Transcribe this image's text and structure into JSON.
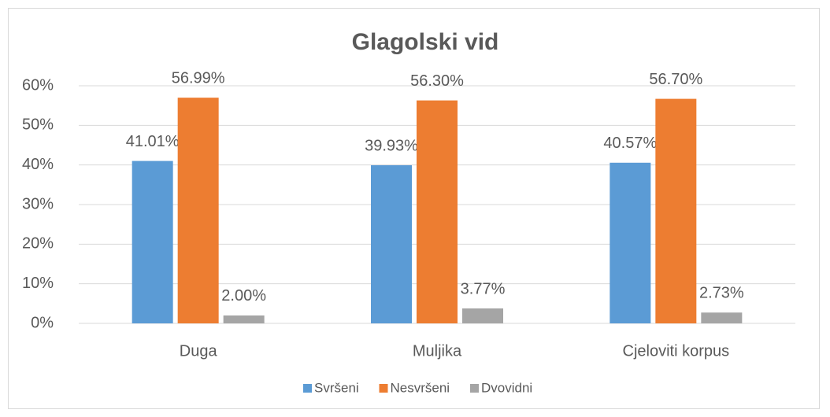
{
  "chart_data": {
    "type": "bar",
    "title": "Glagolski vid",
    "categories": [
      "Duga",
      "Muljika",
      "Cjeloviti korpus"
    ],
    "series": [
      {
        "name": "Svršeni",
        "color": "#5b9bd5",
        "values": [
          41.01,
          39.93,
          40.57
        ],
        "value_labels": [
          "41.01%",
          "39.93%",
          "40.57%"
        ]
      },
      {
        "name": "Nesvršeni",
        "color": "#ed7d31",
        "values": [
          56.99,
          56.3,
          56.7
        ],
        "value_labels": [
          "56.99%",
          "56.30%",
          "56.70%"
        ]
      },
      {
        "name": "Dvovidni",
        "color": "#a5a5a5",
        "values": [
          2.0,
          3.77,
          2.73
        ],
        "value_labels": [
          "2.00%",
          "3.77%",
          "2.73%"
        ]
      }
    ],
    "ylim": [
      0,
      60
    ],
    "yticks": [
      {
        "value": 0,
        "label": "0%"
      },
      {
        "value": 10,
        "label": "10%"
      },
      {
        "value": 20,
        "label": "20%"
      },
      {
        "value": 30,
        "label": "30%"
      },
      {
        "value": 40,
        "label": "40%"
      },
      {
        "value": 50,
        "label": "50%"
      },
      {
        "value": 60,
        "label": "60%"
      }
    ],
    "grid": true,
    "legend": "bottom"
  }
}
